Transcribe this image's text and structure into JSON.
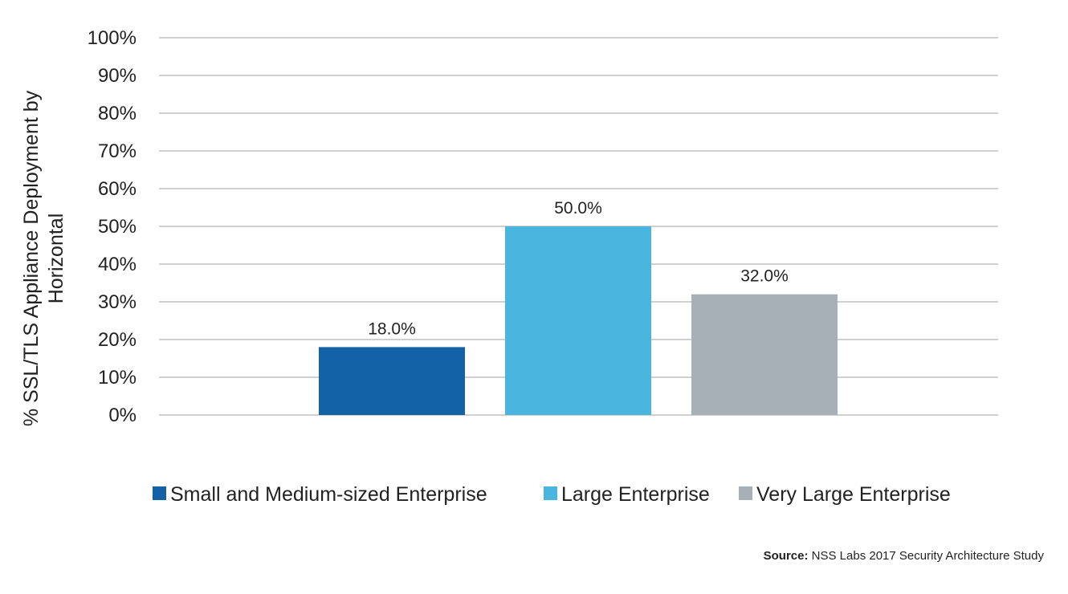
{
  "chart_data": {
    "type": "bar",
    "title": "",
    "xlabel": "",
    "ylabel_lines": [
      "% SSL/TLS Appliance Deployment by",
      "Horizontal"
    ],
    "ylim": [
      0,
      100
    ],
    "yticks": [
      0,
      10,
      20,
      30,
      40,
      50,
      60,
      70,
      80,
      90,
      100
    ],
    "ytick_labels": [
      "0%",
      "10%",
      "20%",
      "30%",
      "40%",
      "50%",
      "60%",
      "70%",
      "80%",
      "90%",
      "100%"
    ],
    "grid": true,
    "legend_position": "bottom",
    "series": [
      {
        "name": "Small and Medium-sized Enterprise",
        "value": 18.0,
        "label": "18.0%",
        "color": "#1462a6"
      },
      {
        "name": "Large Enterprise",
        "value": 50.0,
        "label": "50.0%",
        "color": "#4ab5df"
      },
      {
        "name": "Very Large Enterprise",
        "value": 32.0,
        "label": "32.0%",
        "color": "#a8b0b7"
      }
    ]
  },
  "source": {
    "prefix": "Source:",
    "text": "NSS Labs 2017 Security Architecture Study"
  }
}
